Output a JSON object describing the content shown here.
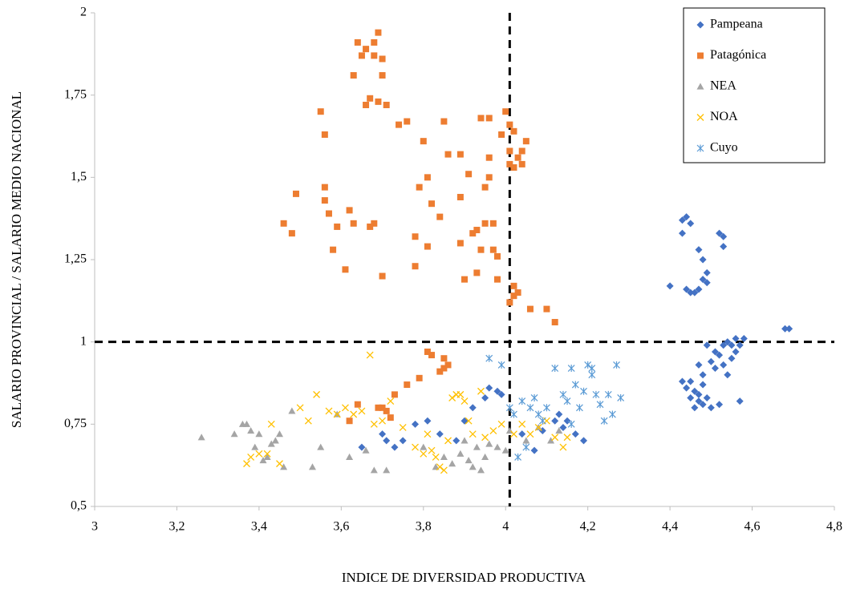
{
  "chart_data": {
    "type": "scatter",
    "x_label": "INDICE DE DIVERSIDAD PRODUCTIVA",
    "y_label": "SALARIO PROVINCIAL / SALARIO MEDIO NACIONAL",
    "xlim": [
      3,
      4.8
    ],
    "xticks": [
      3,
      {
        "value": 3.2,
        "label": "3,2"
      },
      {
        "value": 3.4,
        "label": "3,4"
      },
      {
        "value": 3.6,
        "label": "3,6"
      },
      {
        "value": 3.8,
        "label": "3,8"
      },
      4,
      {
        "value": 4.2,
        "label": "4,2"
      },
      {
        "value": 4.4,
        "label": "4,4"
      },
      {
        "value": 4.6,
        "label": "4,6"
      },
      {
        "value": 4.8,
        "label": "4,8"
      }
    ],
    "ylim": [
      0.5,
      2
    ],
    "yticks": [
      {
        "value": 0.5,
        "label": "0,5"
      },
      {
        "value": 0.75,
        "label": "0,75"
      },
      1,
      {
        "value": 1.25,
        "label": "1,25"
      },
      {
        "value": 1.5,
        "label": "1,5"
      },
      {
        "value": 1.75,
        "label": "1,75"
      },
      2
    ],
    "reference_lines": {
      "x": [
        4.01
      ],
      "y": [
        1
      ]
    },
    "legend": "upper-right",
    "series": [
      {
        "name": "Pampeana",
        "color": "#4472c4",
        "marker": "diamond",
        "x": [
          4.4,
          4.43,
          4.44,
          4.45,
          4.43,
          4.44,
          4.45,
          4.46,
          4.47,
          4.47,
          4.48,
          4.48,
          4.49,
          4.49,
          4.52,
          4.53,
          4.53,
          4.43,
          4.44,
          4.45,
          4.46,
          4.46,
          4.47,
          4.47,
          4.48,
          4.48,
          4.48,
          4.49,
          4.49,
          4.5,
          4.5,
          4.51,
          4.52,
          4.52,
          4.53,
          4.53,
          4.54,
          4.54,
          4.55,
          4.55,
          4.56,
          4.56,
          4.57,
          4.57,
          4.58,
          4.68,
          4.69,
          4.47,
          4.45,
          4.51,
          3.65,
          3.7,
          3.71,
          3.73,
          3.75,
          3.78,
          3.81,
          3.84,
          3.88,
          3.9,
          3.92,
          3.95,
          3.96,
          3.98,
          3.99,
          4.04,
          4.07,
          4.09,
          4.12,
          4.13,
          4.14,
          4.15,
          4.17,
          4.19
        ],
        "values": [
          1.17,
          1.37,
          1.38,
          1.36,
          1.33,
          1.16,
          1.15,
          1.15,
          1.16,
          1.28,
          1.25,
          1.19,
          1.21,
          1.18,
          1.33,
          1.32,
          1.29,
          0.88,
          0.86,
          0.83,
          0.8,
          0.85,
          0.82,
          0.84,
          0.81,
          0.87,
          0.9,
          0.99,
          0.83,
          0.8,
          0.94,
          0.92,
          0.96,
          0.81,
          0.99,
          0.93,
          1.0,
          0.9,
          0.95,
          0.99,
          1.01,
          0.97,
          0.82,
          0.99,
          1.01,
          1.04,
          1.04,
          0.93,
          0.88,
          0.97,
          0.68,
          0.72,
          0.7,
          0.68,
          0.7,
          0.75,
          0.76,
          0.72,
          0.7,
          0.76,
          0.8,
          0.83,
          0.86,
          0.85,
          0.84,
          0.72,
          0.67,
          0.73,
          0.76,
          0.78,
          0.74,
          0.76,
          0.72,
          0.7
        ]
      },
      {
        "name": "Patagónica",
        "color": "#ed7d31",
        "marker": "square",
        "x": [
          3.46,
          3.48,
          3.49,
          3.55,
          3.56,
          3.56,
          3.56,
          3.57,
          3.58,
          3.59,
          3.61,
          3.62,
          3.63,
          3.63,
          3.64,
          3.65,
          3.66,
          3.66,
          3.67,
          3.68,
          3.68,
          3.69,
          3.69,
          3.7,
          3.7,
          3.71,
          3.68,
          3.67,
          3.7,
          3.74,
          3.76,
          3.78,
          3.78,
          3.79,
          3.8,
          3.81,
          3.81,
          3.82,
          3.84,
          3.85,
          3.86,
          3.89,
          3.89,
          3.89,
          3.9,
          3.91,
          3.92,
          3.93,
          3.93,
          3.94,
          3.94,
          3.95,
          3.95,
          3.96,
          3.96,
          3.96,
          3.97,
          3.97,
          3.98,
          3.98,
          3.99,
          4.0,
          4.01,
          4.01,
          4.01,
          4.02,
          4.02,
          4.03,
          4.04,
          4.04,
          4.05,
          4.01,
          4.02,
          4.02,
          4.03,
          4.06,
          4.1,
          4.12,
          3.64,
          3.7,
          3.71,
          3.72,
          3.73,
          3.76,
          3.79,
          3.81,
          3.82,
          3.84,
          3.85,
          3.85,
          3.86,
          3.62,
          3.69
        ],
        "values": [
          1.36,
          1.33,
          1.45,
          1.7,
          1.63,
          1.43,
          1.47,
          1.39,
          1.28,
          1.35,
          1.22,
          1.4,
          1.36,
          1.81,
          1.91,
          1.87,
          1.89,
          1.72,
          1.74,
          1.91,
          1.87,
          1.94,
          1.73,
          1.86,
          1.81,
          1.72,
          1.36,
          1.35,
          1.2,
          1.66,
          1.67,
          1.32,
          1.23,
          1.47,
          1.61,
          1.5,
          1.29,
          1.42,
          1.38,
          1.67,
          1.57,
          1.44,
          1.3,
          1.57,
          1.19,
          1.51,
          1.33,
          1.21,
          1.34,
          1.28,
          1.68,
          1.47,
          1.36,
          1.56,
          1.5,
          1.68,
          1.36,
          1.28,
          1.26,
          1.19,
          1.63,
          1.7,
          1.66,
          1.58,
          1.54,
          1.64,
          1.53,
          1.56,
          1.54,
          1.58,
          1.61,
          1.12,
          1.14,
          1.17,
          1.15,
          1.1,
          1.1,
          1.06,
          0.81,
          0.8,
          0.79,
          0.77,
          0.84,
          0.87,
          0.89,
          0.97,
          0.96,
          0.91,
          0.95,
          0.92,
          0.93,
          0.76,
          0.8
        ]
      },
      {
        "name": "NEA",
        "color": "#a5a5a5",
        "marker": "triangle",
        "x": [
          3.26,
          3.34,
          3.36,
          3.37,
          3.38,
          3.39,
          3.4,
          3.41,
          3.42,
          3.43,
          3.44,
          3.45,
          3.46,
          3.48,
          3.53,
          3.55,
          3.59,
          3.62,
          3.66,
          3.68,
          3.71,
          3.8,
          3.83,
          3.85,
          3.87,
          3.89,
          3.9,
          3.91,
          3.92,
          3.93,
          3.94,
          3.95,
          3.96,
          3.98,
          4.0,
          4.01,
          4.05,
          4.08,
          4.11,
          4.13
        ],
        "values": [
          0.71,
          0.72,
          0.75,
          0.75,
          0.73,
          0.68,
          0.72,
          0.64,
          0.65,
          0.69,
          0.7,
          0.72,
          0.62,
          0.79,
          0.62,
          0.68,
          0.78,
          0.65,
          0.67,
          0.61,
          0.61,
          0.68,
          0.62,
          0.65,
          0.63,
          0.66,
          0.7,
          0.64,
          0.62,
          0.68,
          0.61,
          0.65,
          0.69,
          0.68,
          0.67,
          0.73,
          0.7,
          0.74,
          0.7,
          0.73
        ]
      },
      {
        "name": "NOA",
        "color": "#ffc000",
        "marker": "x",
        "x": [
          3.37,
          3.38,
          3.4,
          3.42,
          3.43,
          3.45,
          3.5,
          3.52,
          3.54,
          3.57,
          3.59,
          3.61,
          3.63,
          3.65,
          3.67,
          3.68,
          3.7,
          3.72,
          3.75,
          3.78,
          3.8,
          3.81,
          3.82,
          3.83,
          3.84,
          3.85,
          3.86,
          3.87,
          3.88,
          3.89,
          3.9,
          3.91,
          3.92,
          3.94,
          3.95,
          3.97,
          3.99,
          4.02,
          4.04,
          4.06,
          4.08,
          4.1,
          4.12,
          4.14,
          4.15
        ],
        "values": [
          0.63,
          0.65,
          0.66,
          0.66,
          0.75,
          0.63,
          0.8,
          0.76,
          0.84,
          0.79,
          0.78,
          0.8,
          0.78,
          0.79,
          0.96,
          0.75,
          0.76,
          0.82,
          0.74,
          0.68,
          0.66,
          0.72,
          0.67,
          0.65,
          0.62,
          0.61,
          0.7,
          0.83,
          0.84,
          0.84,
          0.82,
          0.76,
          0.72,
          0.85,
          0.71,
          0.73,
          0.75,
          0.72,
          0.75,
          0.72,
          0.74,
          0.76,
          0.71,
          0.68,
          0.71
        ]
      },
      {
        "name": "Cuyo",
        "color": "#5b9bd5",
        "marker": "asterisk",
        "x": [
          3.96,
          3.99,
          4.01,
          4.02,
          4.03,
          4.04,
          4.05,
          4.06,
          4.07,
          4.08,
          4.09,
          4.1,
          4.12,
          4.14,
          4.15,
          4.16,
          4.17,
          4.18,
          4.19,
          4.2,
          4.21,
          4.22,
          4.23,
          4.24,
          4.25,
          4.26,
          4.27,
          4.28,
          4.16,
          4.21
        ],
        "values": [
          0.95,
          0.93,
          0.8,
          0.78,
          0.65,
          0.82,
          0.68,
          0.8,
          0.83,
          0.78,
          0.76,
          0.8,
          0.92,
          0.84,
          0.82,
          0.92,
          0.87,
          0.8,
          0.85,
          0.93,
          0.92,
          0.84,
          0.81,
          0.76,
          0.84,
          0.78,
          0.93,
          0.83,
          0.75,
          0.9
        ]
      }
    ]
  }
}
